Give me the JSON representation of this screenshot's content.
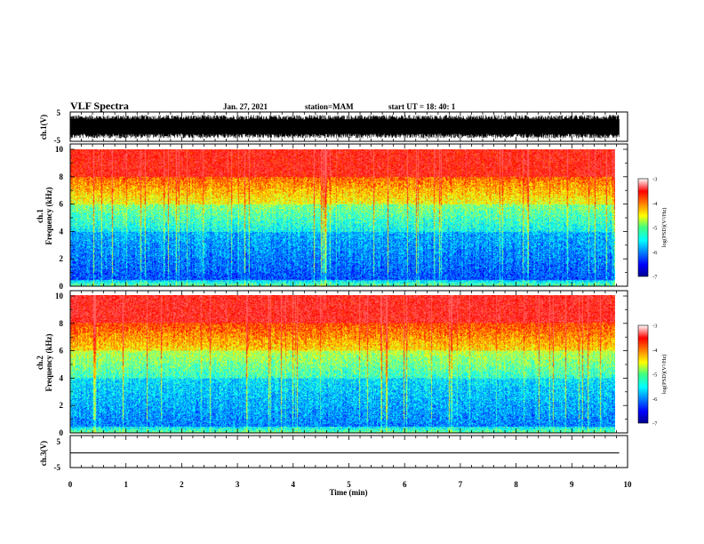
{
  "header": {
    "title": "VLF Spectra",
    "date": "Jan. 27, 2021",
    "station": "station=MAM",
    "start": "start UT =  18: 40: 1"
  },
  "colorbar": {
    "label": "log(PSD)(V²/Hz)",
    "ticks": [
      "-3",
      "-4",
      "-5",
      "-6",
      "-7"
    ]
  },
  "chart_data": [
    {
      "type": "line",
      "panel": "ch1-waveform",
      "ylabel": "ch.1(V)",
      "ylim": [
        -5,
        5
      ],
      "yticks": [
        "5",
        "-5"
      ],
      "x_range": [
        0,
        9.85
      ],
      "description_of_values": "dense broadband waveform noise filling roughly -4 to +4 V"
    },
    {
      "type": "heatmap",
      "panel": "ch1-spectrogram",
      "ylabel_line1": "ch.1",
      "ylabel_line2": "Frequency (kHz)",
      "ylim": [
        0,
        10
      ],
      "yticks": [
        "0",
        "2",
        "4",
        "6",
        "8",
        "10"
      ],
      "x_range": [
        0,
        9.85
      ],
      "color_scale": {
        "min": -7,
        "max": -3,
        "colormap": "jet"
      },
      "band_structure": [
        {
          "freq_khz": [
            0.0,
            0.5
          ],
          "log_psd": -5.0
        },
        {
          "freq_khz": [
            0.5,
            4.0
          ],
          "log_psd": -6.2
        },
        {
          "freq_khz": [
            4.0,
            6.0
          ],
          "log_psd": -5.5
        },
        {
          "freq_khz": [
            6.0,
            8.0
          ],
          "log_psd": -4.6
        },
        {
          "freq_khz": [
            8.0,
            10.0
          ],
          "log_psd": -3.4
        }
      ]
    },
    {
      "type": "heatmap",
      "panel": "ch2-spectrogram",
      "ylabel_line1": "ch.2",
      "ylabel_line2": "Frequency (kHz)",
      "ylim": [
        0,
        10
      ],
      "yticks": [
        "0",
        "2",
        "4",
        "6",
        "8",
        "10"
      ],
      "x_range": [
        0,
        9.85
      ],
      "color_scale": {
        "min": -7,
        "max": -3,
        "colormap": "jet"
      },
      "band_structure": [
        {
          "freq_khz": [
            0.0,
            0.5
          ],
          "log_psd": -5.0
        },
        {
          "freq_khz": [
            0.5,
            4.0
          ],
          "log_psd": -6.0
        },
        {
          "freq_khz": [
            4.0,
            6.0
          ],
          "log_psd": -5.3
        },
        {
          "freq_khz": [
            6.0,
            8.0
          ],
          "log_psd": -4.4
        },
        {
          "freq_khz": [
            8.0,
            10.0
          ],
          "log_psd": -3.3
        }
      ]
    },
    {
      "type": "line",
      "panel": "ch3-waveform",
      "ylabel": "ch.3(V)",
      "ylim": [
        -5,
        5
      ],
      "yticks": [
        "5",
        "-5"
      ],
      "x_range": [
        0,
        9.85
      ],
      "x": [
        0,
        9.85
      ],
      "y": [
        -1,
        -1
      ]
    }
  ],
  "xaxis": {
    "label": "Time (min)",
    "ticks": [
      "0",
      "1",
      "2",
      "3",
      "4",
      "5",
      "6",
      "7",
      "8",
      "9",
      "10"
    ],
    "xlim": [
      0,
      10
    ]
  }
}
